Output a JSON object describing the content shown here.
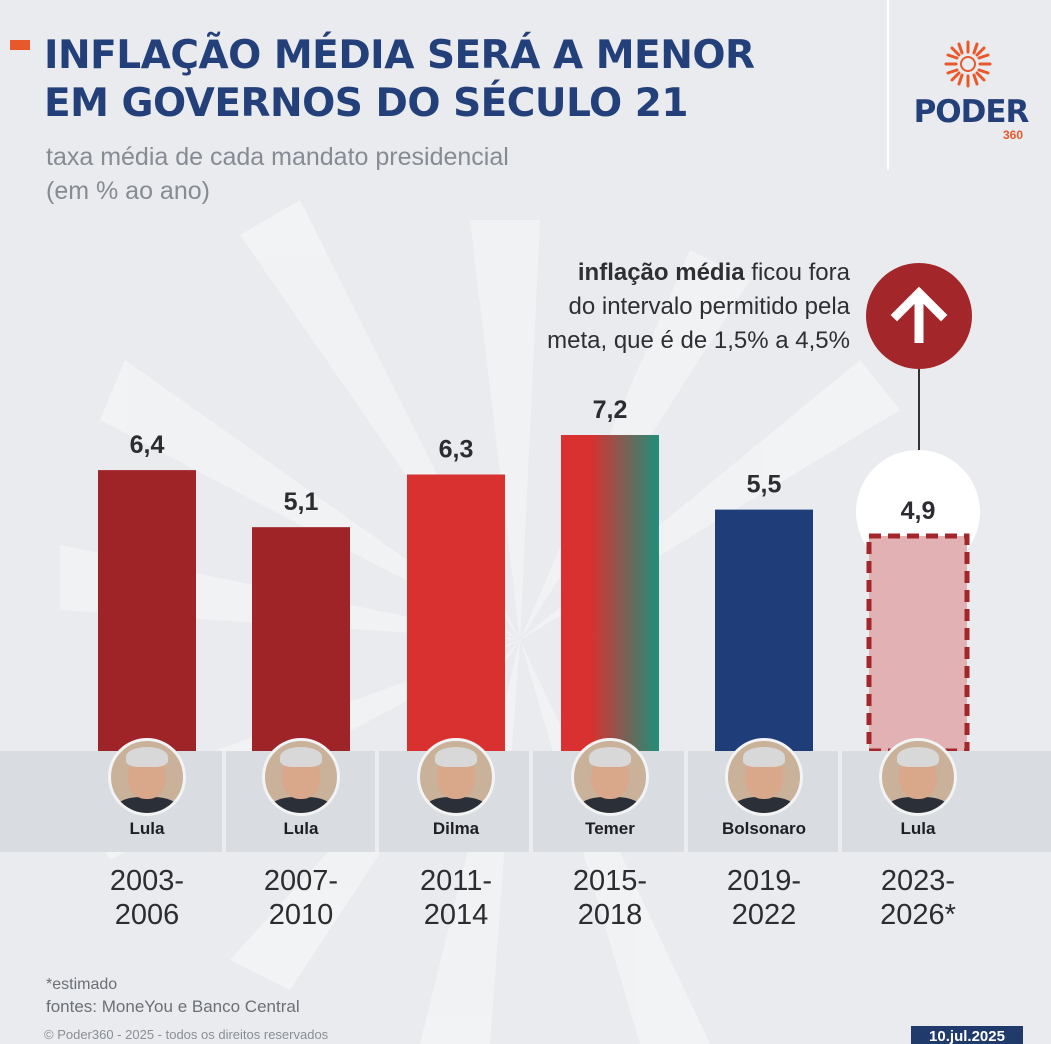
{
  "header": {
    "title_line1": "INFLAÇÃO MÉDIA SERÁ A MENOR",
    "title_line2": "EM GOVERNOS DO SÉCULO 21",
    "subtitle_line1": "taxa média de cada mandato presidencial",
    "subtitle_line2": "(em % ao ano)"
  },
  "logo": {
    "word": "PODER",
    "number": "360",
    "color": "#e8582a"
  },
  "annotation": {
    "bold": "inflação média",
    "line1_rest": " ficou fora",
    "line2": "do intervalo permitido pela",
    "line3": "meta, que é de 1,5% a 4,5%",
    "icon": "arrow-up-icon"
  },
  "chart_data": {
    "type": "bar",
    "categories": [
      "2003-2006",
      "2007-2010",
      "2011-2014",
      "2015-2018",
      "2019-2022",
      "2023-2026*"
    ],
    "values": [
      6.4,
      5.1,
      6.3,
      7.2,
      5.5,
      4.9
    ],
    "value_labels": [
      "6,4",
      "5,1",
      "6,3",
      "7,2",
      "5,5",
      "4,9"
    ],
    "presidents": [
      "Lula",
      "Lula",
      "Dilma",
      "Temer",
      "Bolsonaro",
      "Lula"
    ],
    "periods": [
      [
        "2003-",
        "2006"
      ],
      [
        "2007-",
        "2010"
      ],
      [
        "2011-",
        "2014"
      ],
      [
        "2015-",
        "2018"
      ],
      [
        "2019-",
        "2022"
      ],
      [
        "2023-",
        "2026*"
      ]
    ],
    "colors": [
      "#9e2428",
      "#9e2428",
      "#d9312f",
      "gradient",
      "#1f3d78",
      "#e2b1b3"
    ],
    "gradient_colors": [
      "#d9312f",
      "#1f8f7a"
    ],
    "estimated": [
      false,
      false,
      false,
      false,
      false,
      true
    ],
    "ylim": [
      0,
      7.2
    ],
    "grid": false,
    "legend": "none"
  },
  "footer": {
    "footnote": "*estimado",
    "sources": "fontes: MoneYou e Banco Central",
    "copyright": "© Poder360 - 2025 - todos os direitos reservados",
    "date": "10.jul.2025"
  }
}
